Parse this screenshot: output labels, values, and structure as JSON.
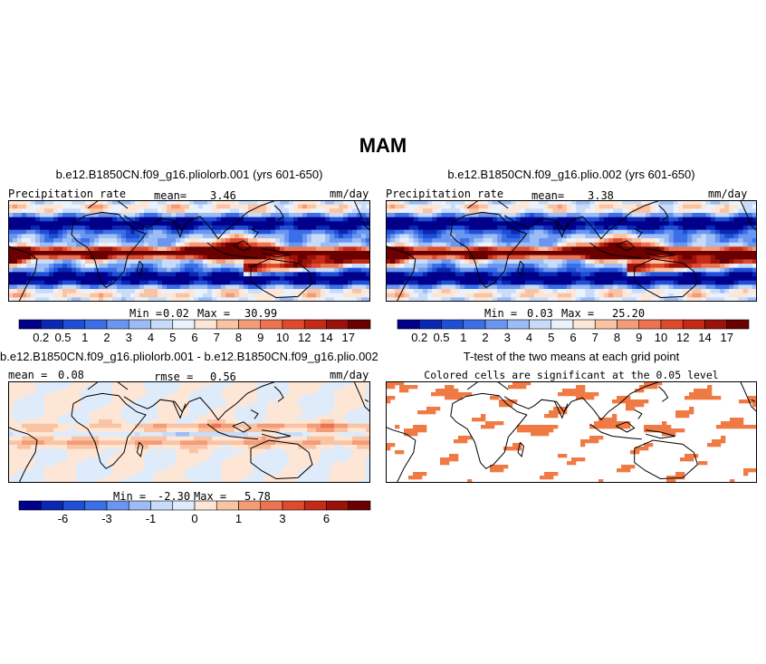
{
  "figure_title": "MAM",
  "colors": {
    "scale": [
      "#00008b",
      "#0a28b4",
      "#1f4fd6",
      "#3b6fe8",
      "#6a96f0",
      "#9bbcf4",
      "#c8dcfa",
      "#eaf2fd",
      "#fde6d6",
      "#f9c4a4",
      "#f49c78",
      "#ee7350",
      "#e04a2c",
      "#c42a16",
      "#9b120a",
      "#6b0000"
    ],
    "diff_scale": [
      "#00008b",
      "#0a28b4",
      "#1f4fd6",
      "#3b6fe8",
      "#6a96f0",
      "#9bbcf4",
      "#c8dcfa",
      "#deebfb",
      "#fde6d6",
      "#f9c4a4",
      "#f49c78",
      "#ee7350",
      "#e04a2c",
      "#c42a16",
      "#9b120a",
      "#6b0000"
    ],
    "significant": "#f07a44",
    "land": "#000000"
  },
  "chart_data": [
    {
      "type": "heatmap",
      "title": "b.e12.B1850CN.f09_g16.pliolorb.001 (yrs 601-650)",
      "left_label": "Precipitation rate",
      "mean_label": "mean=",
      "mean_value": "3.46",
      "units": "mm/day",
      "min_label": "Min =",
      "min_value": "0.02",
      "max_label": "Max =",
      "max_value": "30.99",
      "colorbar_ticks": [
        "0.2",
        "0.5",
        "1",
        "2",
        "3",
        "4",
        "5",
        "6",
        "7",
        "8",
        "9",
        "10",
        "12",
        "14",
        "17"
      ]
    },
    {
      "type": "heatmap",
      "title": "b.e12.B1850CN.f09_g16.plio.002 (yrs 601-650)",
      "left_label": "Precipitation rate",
      "mean_label": "mean=",
      "mean_value": "3.38",
      "units": "mm/day",
      "min_label": "Min =",
      "min_value": "0.03",
      "max_label": "Max =",
      "max_value": "25.20",
      "colorbar_ticks": [
        "0.2",
        "0.5",
        "1",
        "2",
        "3",
        "4",
        "5",
        "6",
        "7",
        "8",
        "9",
        "10",
        "12",
        "14",
        "17"
      ]
    },
    {
      "type": "heatmap",
      "title": "b.e12.B1850CN.f09_g16.pliolorb.001 - b.e12.B1850CN.f09_g16.plio.002",
      "left_label": "mean =",
      "mean_value": "0.08",
      "rmse_label": "rmse =",
      "rmse_value": "0.56",
      "units": "mm/day",
      "min_label": "Min =",
      "min_value": "-2.30",
      "max_label": "Max =",
      "max_value": "5.78",
      "colorbar_ticks": [
        "-6",
        "-3",
        "-1",
        "0",
        "1",
        "3",
        "6"
      ]
    },
    {
      "type": "heatmap",
      "title": "T-test of the two means at each grid point",
      "subtitle": "Colored cells are significant at the 0.05 level"
    }
  ]
}
